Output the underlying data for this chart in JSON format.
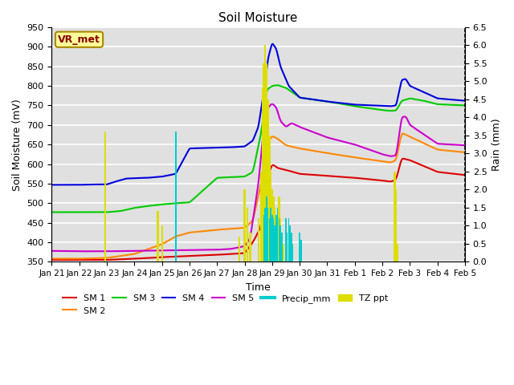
{
  "title": "Soil Moisture",
  "xlabel": "Time",
  "ylabel_left": "Soil Moisture (mV)",
  "ylabel_right": "Rain (mm)",
  "ylim_left": [
    350,
    950
  ],
  "ylim_right": [
    0.0,
    6.5
  ],
  "background_color": "#e0e0e0",
  "vr_met_label": "VR_met",
  "x_tick_labels": [
    "Jan 21",
    "Jan 22",
    "Jan 23",
    "Jan 24",
    "Jan 25",
    "Jan 26",
    "Jan 27",
    "Jan 28",
    "Jan 29",
    "Jan 30",
    "Jan 31",
    "Feb 1",
    "Feb 2",
    "Feb 3",
    "Feb 4",
    "Feb 5"
  ],
  "yticks_left": [
    350,
    400,
    450,
    500,
    550,
    600,
    650,
    700,
    750,
    800,
    850,
    900,
    950
  ],
  "yticks_right": [
    0.0,
    0.5,
    1.0,
    1.5,
    2.0,
    2.5,
    3.0,
    3.5,
    4.0,
    4.5,
    5.0,
    5.5,
    6.0,
    6.5
  ],
  "sm1_color": "#dd0000",
  "sm2_color": "#ff8800",
  "sm3_color": "#00cc00",
  "sm4_color": "#0000dd",
  "sm5_color": "#cc00cc",
  "precip_color": "#00cccc",
  "tz_color": "#dddd00"
}
